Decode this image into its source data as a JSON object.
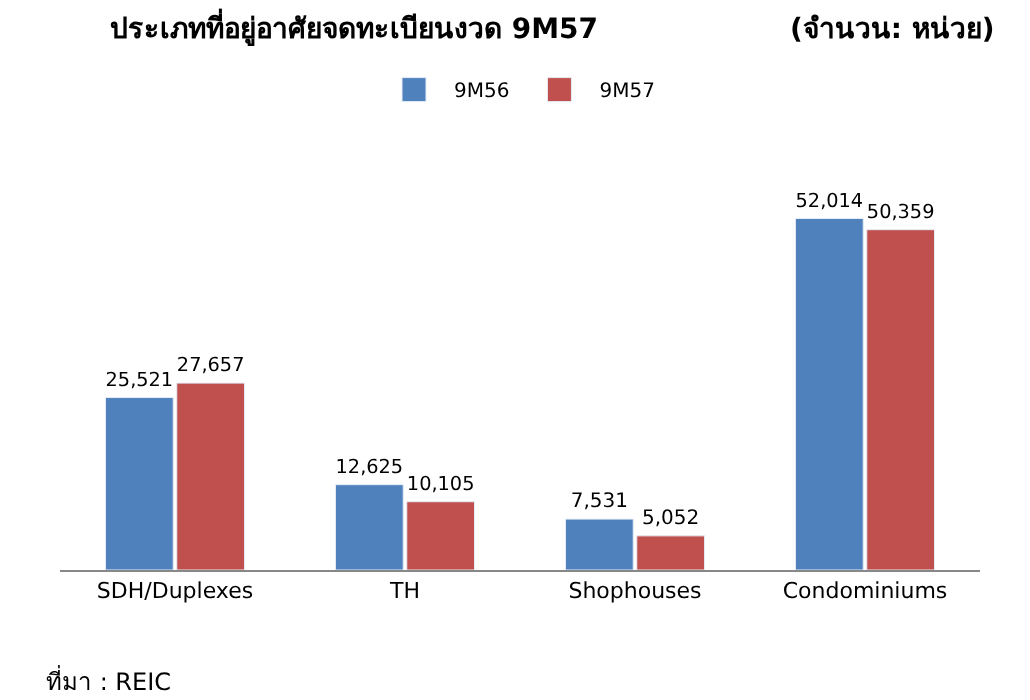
{
  "chart_data": {
    "type": "bar",
    "title": "ประเภทที่อยู่อาศัยจดทะเบียนงวด 9M57",
    "subtitle": "(จำนวน: หน่วย)",
    "categories": [
      "SDH/Duplexes",
      "TH",
      "Shophouses",
      "Condominiums"
    ],
    "series": [
      {
        "name": "9M56",
        "color": "#4f81bd",
        "values": [
          25521,
          12625,
          7531,
          52014
        ],
        "value_labels": [
          "25,521",
          "12,625",
          "7,531",
          "52,014"
        ]
      },
      {
        "name": "9M57",
        "color": "#c0504d",
        "values": [
          27657,
          10105,
          5052,
          50359
        ],
        "value_labels": [
          "27,657",
          "10,105",
          "5,052",
          "50,359"
        ]
      }
    ],
    "annotations": [
      "ที่มา : REIC"
    ],
    "legend": "top"
  }
}
